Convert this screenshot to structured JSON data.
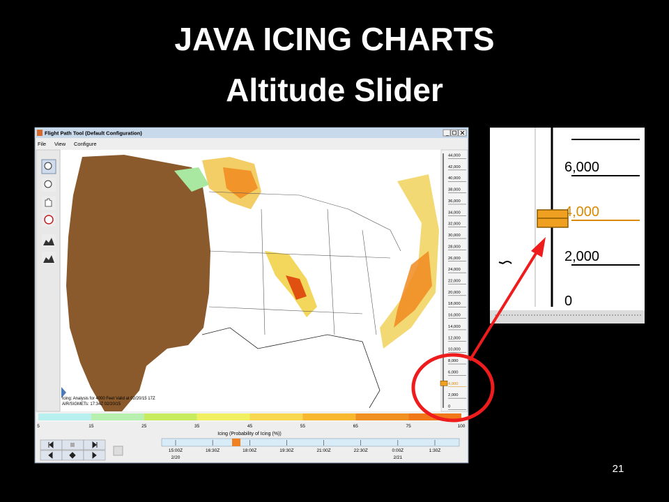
{
  "slide": {
    "title": "JAVA ICING CHARTS",
    "subtitle": "Altitude Slider",
    "page_number": "21"
  },
  "window": {
    "title": "Flight Path Tool (Default Configuration)",
    "menu": [
      "File",
      "View",
      "Configure"
    ],
    "status": [
      "Icing: Analysis for 4000 Feet Valid at 02/20/15 17Z",
      "AIR/SIGMETs: 17:34Z 02/20/15"
    ]
  },
  "altitude_slider": {
    "labels": [
      {
        "text": "44,000"
      },
      {
        "text": "42,000"
      },
      {
        "text": "40,000"
      },
      {
        "text": "38,000"
      },
      {
        "text": "36,000"
      },
      {
        "text": "34,000"
      },
      {
        "text": "32,000"
      },
      {
        "text": "30,000"
      },
      {
        "text": "28,000"
      },
      {
        "text": "26,000"
      },
      {
        "text": "24,000"
      },
      {
        "text": "22,000"
      },
      {
        "text": "20,000"
      },
      {
        "text": "18,000"
      },
      {
        "text": "16,000"
      },
      {
        "text": "14,000"
      },
      {
        "text": "12,000"
      },
      {
        "text": "10,000"
      },
      {
        "text": "8,000"
      },
      {
        "text": "6,000"
      },
      {
        "text": "4,000",
        "selected": true
      },
      {
        "text": "2,000"
      },
      {
        "text": "0"
      }
    ]
  },
  "zoom_inset": {
    "labels": [
      {
        "text": "6,000"
      },
      {
        "text": "4,000",
        "selected": true
      },
      {
        "text": "2,000"
      },
      {
        "text": "0"
      }
    ]
  },
  "color_scale": {
    "title": "Icing (Probability of Icing (%))",
    "labels": [
      "5",
      "15",
      "25",
      "35",
      "45",
      "55",
      "65",
      "75",
      "100"
    ],
    "colors": [
      "#b8f0f0",
      "#b8f0b0",
      "#c8ec60",
      "#f0f060",
      "#f8d850",
      "#f8b830",
      "#f09020",
      "#f07818"
    ]
  },
  "timeline": {
    "times": [
      "15:00Z",
      "16:30Z",
      "18:00Z",
      "19:30Z",
      "21:00Z",
      "22:30Z",
      "0:00Z",
      "1:30Z"
    ],
    "dates": [
      "2/20",
      "2/21"
    ]
  }
}
